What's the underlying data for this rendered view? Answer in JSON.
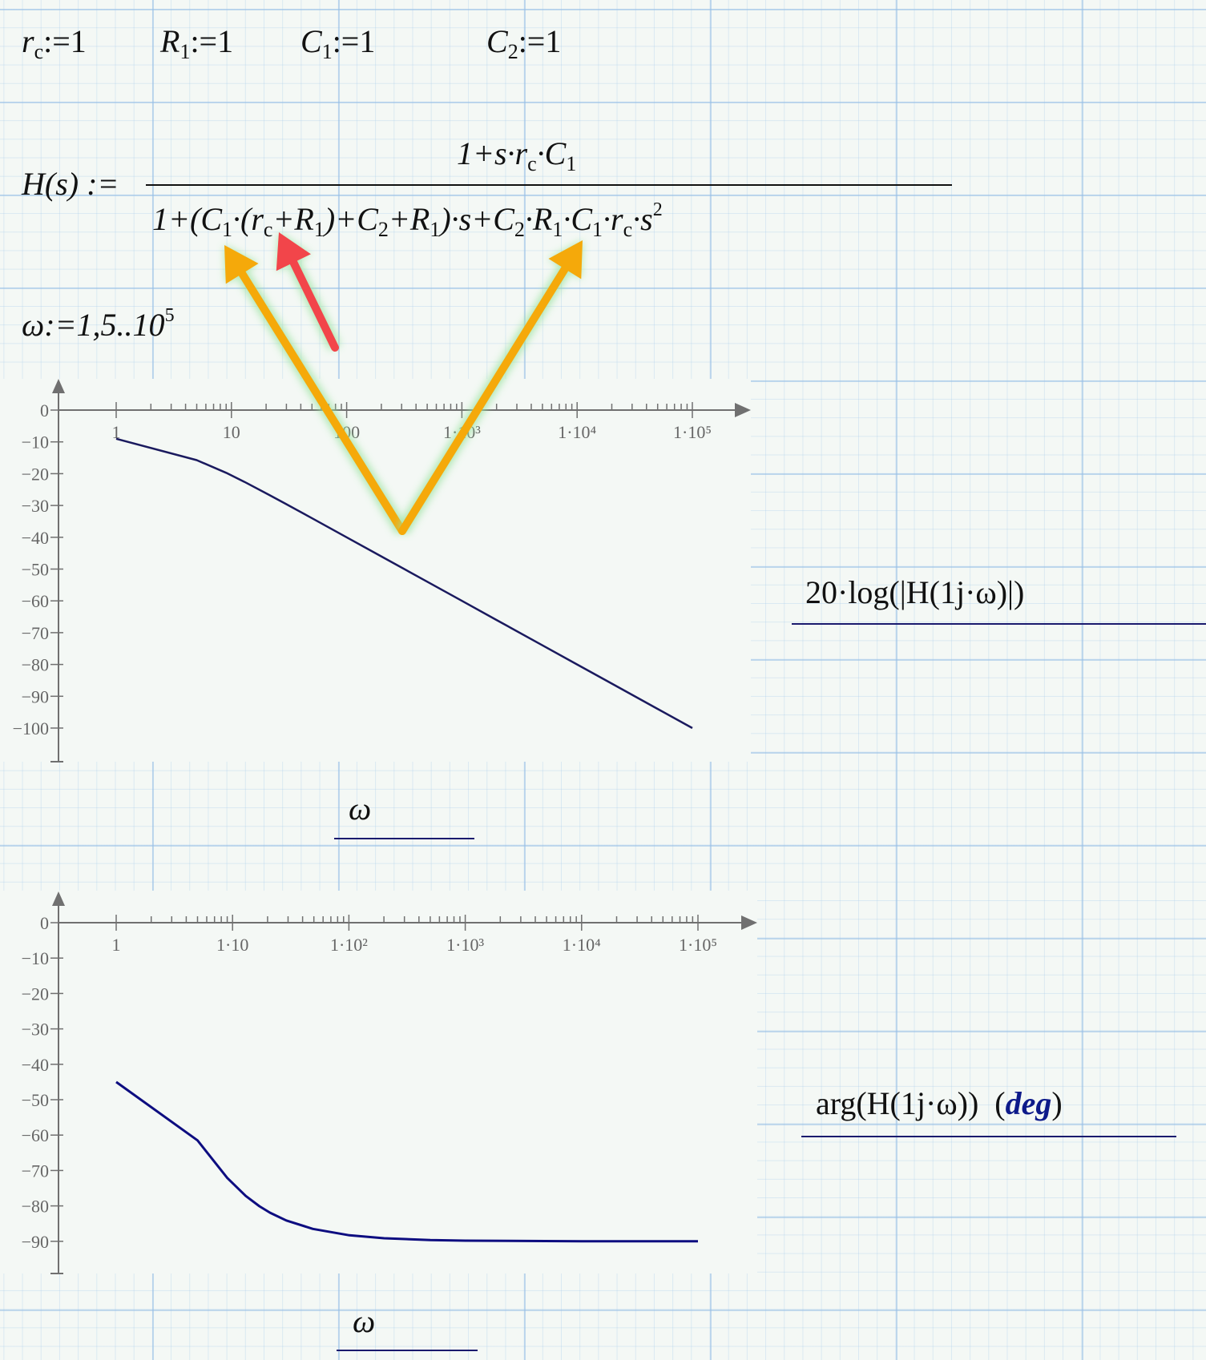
{
  "definitions": [
    {
      "name": "r",
      "sub": "c",
      "op": ":=",
      "value": "1"
    },
    {
      "name": "R",
      "sub": "1",
      "op": ":=",
      "value": "1"
    },
    {
      "name": "C",
      "sub": "1",
      "op": ":=",
      "value": "1"
    },
    {
      "name": "C",
      "sub": "2",
      "op": ":=",
      "value": "1"
    }
  ],
  "transfer": {
    "lhs": "H(s) :=",
    "numerator": [
      {
        "t": "1+s·r"
      },
      {
        "sub": "c"
      },
      {
        "t": "·C"
      },
      {
        "sub": "1"
      }
    ],
    "denominator": [
      {
        "t": "1+(C"
      },
      {
        "sub": "1"
      },
      {
        "t": "·(r"
      },
      {
        "sub": "c"
      },
      {
        "t": "+R"
      },
      {
        "sub": "1"
      },
      {
        "t": ")+C"
      },
      {
        "sub": "2"
      },
      {
        "t": "+R"
      },
      {
        "sub": "1"
      },
      {
        "t": ")·s+C"
      },
      {
        "sub": "2"
      },
      {
        "t": "·R"
      },
      {
        "sub": "1"
      },
      {
        "t": "·C"
      },
      {
        "sub": "1"
      },
      {
        "t": "·r"
      },
      {
        "sub": "c"
      },
      {
        "t": "·s"
      },
      {
        "sup": "2"
      }
    ]
  },
  "range": {
    "text": "ω:=1,5..10",
    "sup": "5"
  },
  "annotation_colors": {
    "orange_arrows": "#f5a90a",
    "red_arrow": "#f2454a",
    "glow": "#9be3a0"
  },
  "chart_data": [
    {
      "type": "line",
      "xscale": "log",
      "xlim": [
        1,
        100000
      ],
      "ylim": [
        -110,
        0
      ],
      "xticklabels": [
        "1",
        "10",
        "100",
        "1·10³",
        "1·10⁴",
        "1·10⁵"
      ],
      "yticklabels": [
        "0",
        "−10",
        "−20",
        "−30",
        "−40",
        "−50",
        "−60",
        "−70",
        "−80",
        "−90",
        "−100"
      ],
      "ylabel": "20·log(|H(1j·ω)|)",
      "xlabel": "ω",
      "color": "#1a1a5e",
      "grid": false,
      "x": [
        1,
        5,
        9,
        13,
        21,
        29,
        49,
        101,
        201,
        501,
        1001,
        2001,
        5001,
        10001,
        20001,
        50001,
        100001
      ],
      "y": [
        -9.03,
        -15.75,
        -19.72,
        -22.6,
        -26.57,
        -29.31,
        -33.83,
        -40.09,
        -46.07,
        -53.99,
        -60.01,
        -66.03,
        -73.98,
        -80.0,
        -86.02,
        -93.98,
        -100.0
      ]
    },
    {
      "type": "line",
      "xscale": "log",
      "xlim": [
        1,
        100000
      ],
      "ylim": [
        -100,
        0
      ],
      "xticklabels": [
        "1",
        "1·10",
        "1·10²",
        "1·10³",
        "1·10⁴",
        "1·10⁵"
      ],
      "yticklabels": [
        "0",
        "−10",
        "−20",
        "−30",
        "−40",
        "−50",
        "−60",
        "−70",
        "−80",
        "−90"
      ],
      "ylabel": "arg(H(1j·ω))",
      "ylabel_unit": "deg",
      "xlabel": "ω",
      "color": "#0d0d80",
      "grid": false,
      "x": [
        1,
        5,
        9,
        13,
        17,
        21,
        29,
        49,
        101,
        201,
        501,
        1001,
        10001,
        100001
      ],
      "y": [
        -45,
        -61.5,
        -72.11,
        -77.2,
        -80.09,
        -81.92,
        -84.11,
        -86.5,
        -88.3,
        -89.15,
        -89.66,
        -89.83,
        -89.98,
        -90.0
      ]
    }
  ]
}
